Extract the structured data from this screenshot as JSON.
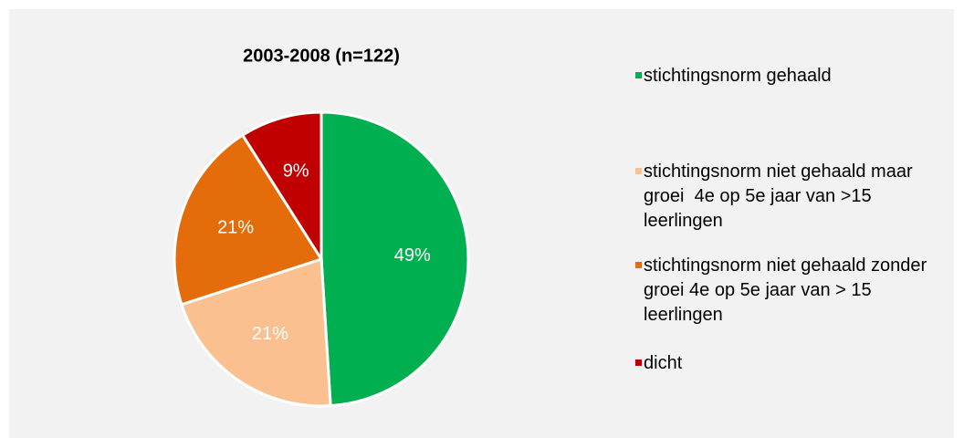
{
  "chart_data": {
    "type": "pie",
    "title": "2003-2008 (n=122)",
    "series": [
      {
        "name": "stichtingsnorm gehaald",
        "color": "#00b050",
        "values": [
          49
        ],
        "value_labels": [
          "49%"
        ]
      },
      {
        "name": "stichtingsnorm niet gehaald maar groei  4e op 5e jaar van >15 leerlingen",
        "color": "#fac090",
        "values": [
          21
        ],
        "value_labels": [
          "21%"
        ]
      },
      {
        "name": "stichtingsnorm niet gehaald zonder groei 4e op 5e jaar van > 15 leerlingen",
        "color": "#e46c0a",
        "values": [
          21
        ],
        "value_labels": [
          "21%"
        ]
      },
      {
        "name": "dicht",
        "color": "#c00000",
        "values": [
          9
        ],
        "value_labels": [
          "9%"
        ]
      }
    ],
    "legend": "right"
  }
}
